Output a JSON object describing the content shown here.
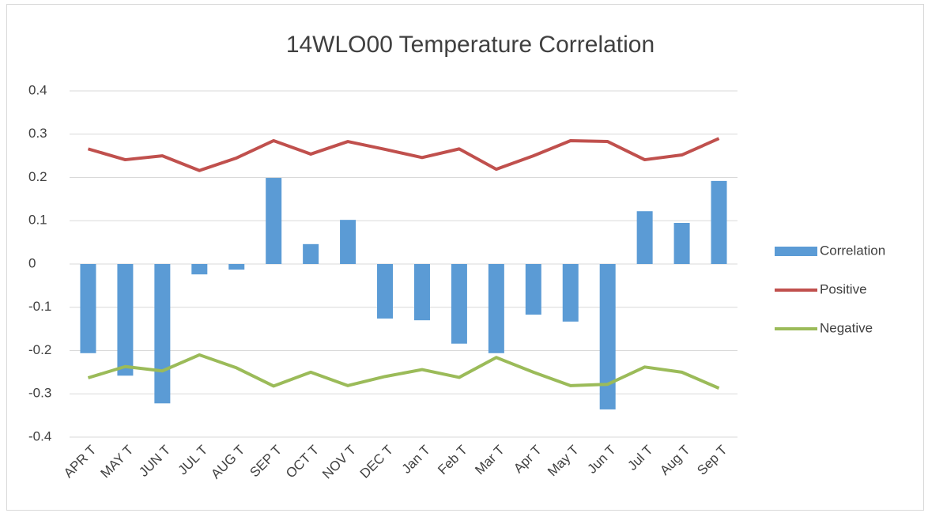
{
  "chart_data": {
    "type": "bar-line",
    "title": "14WLO00 Temperature Correlation",
    "categories": [
      "APR T",
      "MAY T",
      "JUN T",
      "JUL T",
      "AUG T",
      "SEP T",
      "OCT T",
      "NOV T",
      "DEC T",
      "Jan T",
      "Feb T",
      "Mar T",
      "Apr T",
      "May T",
      "Jun T",
      "Jul T",
      "Aug T",
      "Sep T"
    ],
    "series": [
      {
        "name": "Correlation",
        "kind": "bar",
        "color": "#5b9bd5",
        "values": [
          -0.206,
          -0.258,
          -0.322,
          -0.024,
          -0.013,
          0.199,
          0.046,
          0.102,
          -0.126,
          -0.13,
          -0.184,
          -0.206,
          -0.117,
          -0.133,
          -0.336,
          0.122,
          0.095,
          0.192
        ]
      },
      {
        "name": "Positive",
        "kind": "line",
        "color": "#c0504d",
        "values": [
          0.266,
          0.241,
          0.25,
          0.216,
          0.245,
          0.285,
          0.254,
          0.283,
          0.265,
          0.246,
          0.266,
          0.219,
          0.25,
          0.285,
          0.283,
          0.241,
          0.252,
          0.29
        ]
      },
      {
        "name": "Negative",
        "kind": "line",
        "color": "#9bbb59",
        "values": [
          -0.263,
          -0.237,
          -0.247,
          -0.21,
          -0.24,
          -0.282,
          -0.25,
          -0.281,
          -0.26,
          -0.244,
          -0.262,
          -0.216,
          -0.25,
          -0.281,
          -0.278,
          -0.238,
          -0.25,
          -0.287
        ]
      }
    ],
    "ylim": [
      -0.4,
      0.4
    ],
    "yticks": [
      -0.4,
      -0.3,
      -0.2,
      -0.1,
      0,
      0.1,
      0.2,
      0.3,
      0.4
    ],
    "grid": true,
    "legend": "right"
  }
}
